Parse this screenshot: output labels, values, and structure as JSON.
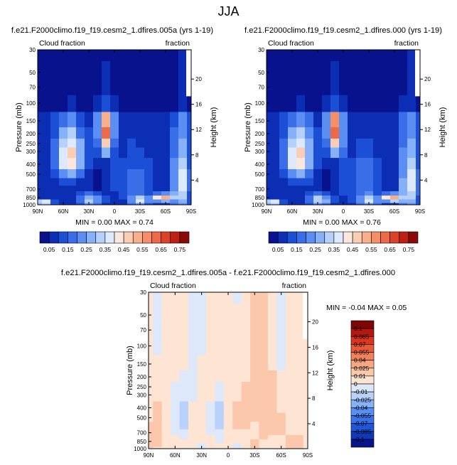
{
  "figure": {
    "title": "JJA"
  },
  "colors": {
    "top_palette": [
      "#08128c",
      "#0b2eb4",
      "#1a4fd6",
      "#3a6ee8",
      "#5b8ef2",
      "#86b0f7",
      "#b4d0fb",
      "#dde9fc",
      "#fbe7dc",
      "#fbcdb4",
      "#f8af8c",
      "#f48f68",
      "#ec6a45",
      "#dc4228",
      "#bc2014",
      "#8a0a0a"
    ],
    "diff_palette": [
      "#08158a",
      "#1337b8",
      "#1f55d6",
      "#3872ea",
      "#5a90f4",
      "#87b2f8",
      "#b8d2fb",
      "#dde9fb",
      "#fde4d3",
      "#fbc8ac",
      "#f7a781",
      "#f1825a",
      "#e85a36",
      "#d8361e",
      "#b51810",
      "#7e0606"
    ]
  },
  "chart_data": [
    {
      "type": "heatmap",
      "title": "f.e21.F2000climo.f19_f19.cesm2_1.dfires.005a (yrs 1-19)",
      "subtitle_left": "Cloud fraction",
      "subtitle_right": "fraction",
      "ylabel": "Pressure (mb)",
      "ylabel_right": "Height (km)",
      "x_ticks": [
        "90N",
        "60N",
        "30N",
        "0",
        "30S",
        "60S",
        "90S"
      ],
      "y_ticks": [
        "30",
        "50",
        "70",
        "100",
        "150",
        "200",
        "250",
        "300",
        "400",
        "500",
        "700",
        "850",
        "1000"
      ],
      "y_ticks_right": [
        "20",
        "16",
        "12",
        "8",
        "4"
      ],
      "xlim": [
        90,
        -90
      ],
      "ylim": [
        1000,
        30
      ],
      "stats": "MIN =  0.00   MAX =  0.74",
      "colorbar_levels": [
        0.05,
        0.1,
        0.15,
        0.2,
        0.25,
        0.3,
        0.35,
        0.4,
        0.45,
        0.5,
        0.55,
        0.6,
        0.65,
        0.7,
        0.75
      ],
      "colorbar_labels": [
        "0.05",
        "0.15",
        "0.25",
        "0.35",
        "0.45",
        "0.55",
        "0.65",
        "0.75"
      ],
      "colorbar_orientation": "horizontal"
    },
    {
      "type": "heatmap",
      "title": "f.e21.F2000climo.f19_f19.cesm2_1.dfires.000 (yrs 1-19)",
      "subtitle_left": "Cloud fraction",
      "subtitle_right": "fraction",
      "ylabel": "Pressure (mb)",
      "ylabel_right": "Height (km)",
      "x_ticks": [
        "90N",
        "60N",
        "30N",
        "0",
        "30S",
        "60S",
        "90S"
      ],
      "y_ticks": [
        "30",
        "50",
        "70",
        "100",
        "150",
        "200",
        "250",
        "300",
        "400",
        "500",
        "700",
        "850",
        "1000"
      ],
      "y_ticks_right": [
        "20",
        "16",
        "12",
        "8",
        "4"
      ],
      "xlim": [
        90,
        -90
      ],
      "ylim": [
        1000,
        30
      ],
      "stats": "MIN =  0.00   MAX =  0.76",
      "colorbar_levels": [
        0.05,
        0.1,
        0.15,
        0.2,
        0.25,
        0.3,
        0.35,
        0.4,
        0.45,
        0.5,
        0.55,
        0.6,
        0.65,
        0.7,
        0.75
      ],
      "colorbar_labels": [
        "0.05",
        "0.15",
        "0.25",
        "0.35",
        "0.45",
        "0.55",
        "0.65",
        "0.75"
      ],
      "colorbar_orientation": "horizontal"
    },
    {
      "type": "heatmap",
      "title": "f.e21.F2000climo.f19_f19.cesm2_1.dfires.005a - f.e21.F2000climo.f19_f19.cesm2_1.dfires.000",
      "subtitle_left": "Cloud fraction",
      "subtitle_right": "fraction",
      "ylabel": "Pressure (mb)",
      "ylabel_right": "Height (km)",
      "x_ticks": [
        "90N",
        "60N",
        "30N",
        "0",
        "30S",
        "60S",
        "90S"
      ],
      "y_ticks": [
        "30",
        "50",
        "70",
        "100",
        "150",
        "200",
        "250",
        "300",
        "400",
        "500",
        "700",
        "850",
        "1000"
      ],
      "y_ticks_right": [
        "20",
        "16",
        "12",
        "8",
        "4"
      ],
      "xlim": [
        90,
        -90
      ],
      "ylim": [
        1000,
        30
      ],
      "stats": "MIN = -0.04   MAX =  0.05",
      "colorbar_labels": [
        "0.1",
        "0.085",
        "0.07",
        "0.055",
        "0.04",
        "0.025",
        "0.01",
        "0",
        "-0.01",
        "-0.025",
        "-0.04",
        "-0.055",
        "-0.07",
        "-0.085",
        "-0.1"
      ],
      "colorbar_orientation": "vertical"
    }
  ]
}
